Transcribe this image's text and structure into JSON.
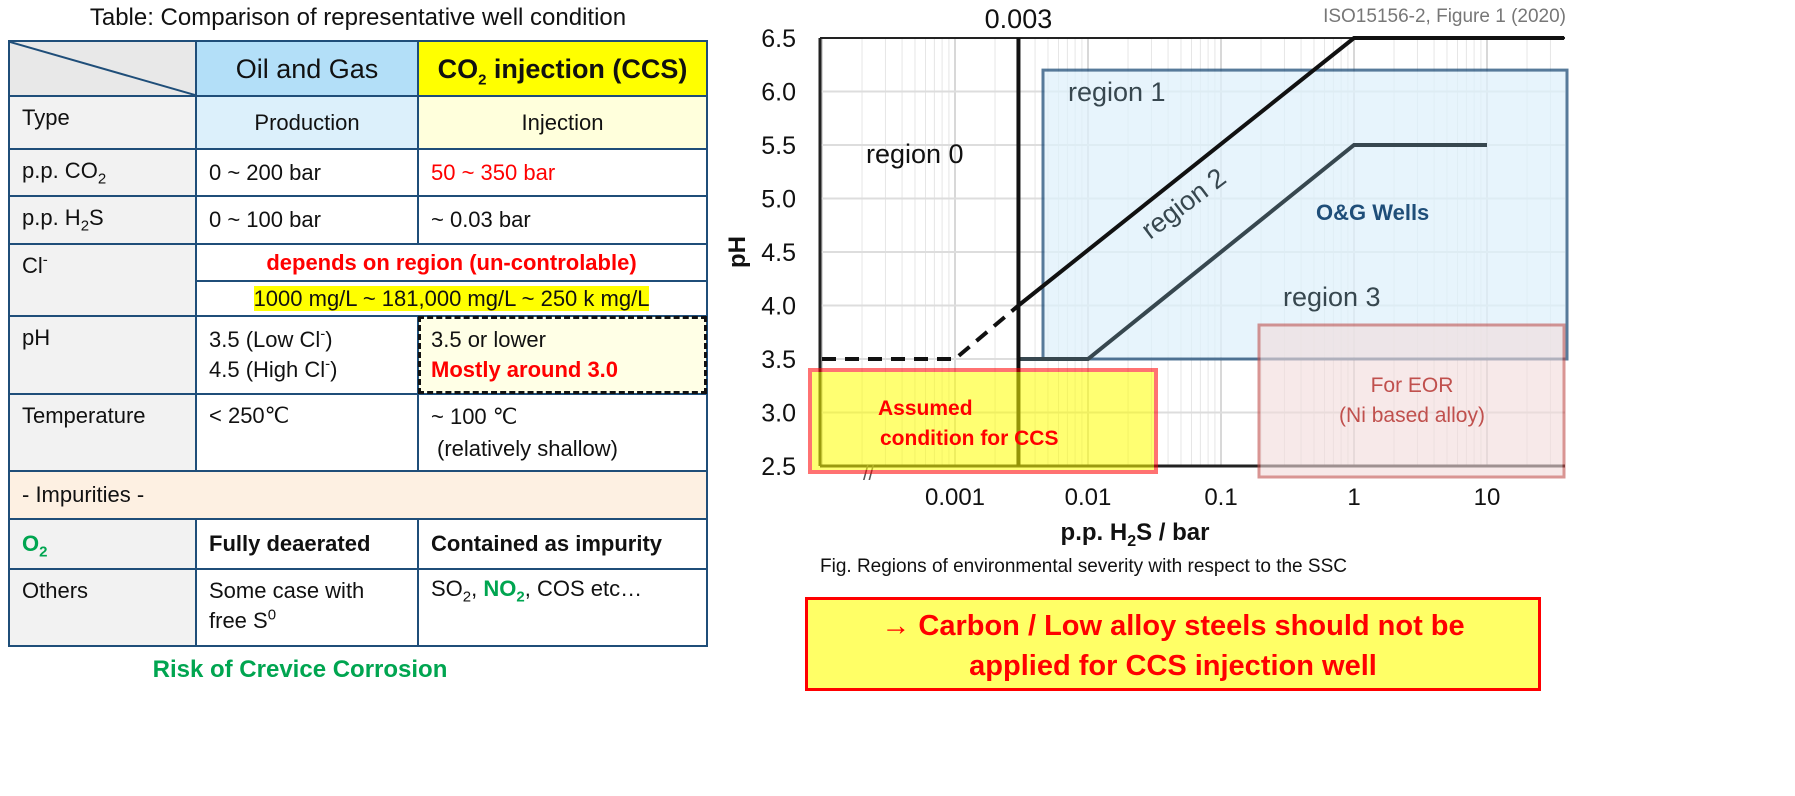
{
  "table": {
    "title": "Table: Comparison of representative well condition",
    "col_oil": "Oil and Gas",
    "col_ccs_pre": "CO",
    "col_ccs_sub": "2",
    "col_ccs_post": " injection (CCS)",
    "rows": {
      "type": {
        "label": "Type",
        "oil": "Production",
        "ccs": "Injection"
      },
      "co2": {
        "label_pre": "p.p. CO",
        "label_sub": "2",
        "oil": "0 ~ 200 bar",
        "ccs": "50 ~ 350 bar"
      },
      "h2s": {
        "label_pre": "p.p. H",
        "label_sub": "2",
        "label_post": "S",
        "oil": "0 ~ 100 bar",
        "ccs": "~ 0.03 bar"
      },
      "cl": {
        "label_pre": "Cl",
        "label_sup": "-",
        "note": "depends on region (un-controlable)",
        "range": "1000 mg/L ~ 181,000 mg/L ~ 250 k mg/L"
      },
      "ph": {
        "label": "pH",
        "oil_1_pre": "3.5 (Low Cl",
        "oil_1_post": ")",
        "oil_2_pre": "4.5 (High Cl",
        "oil_2_post": ")",
        "sup": "-",
        "ccs_1": "3.5 or lower",
        "ccs_2": "Mostly around 3.0"
      },
      "temp": {
        "label": "Temperature",
        "oil": "< 250℃",
        "ccs_1": "~ 100 ℃",
        "ccs_2": "(relatively shallow)"
      },
      "impurities": {
        "label": "- Impurities -"
      },
      "o2": {
        "label_pre": "O",
        "label_sub": "2",
        "oil": "Fully deaerated",
        "ccs": "Contained as impurity"
      },
      "others": {
        "label": "Others",
        "oil_1": "Some case with",
        "oil_2_pre": "free S",
        "oil_2_sup": "0",
        "ccs_so": "SO",
        "ccs_no": "NO",
        "ccs_tail": ", COS etc…",
        "sub": "2"
      }
    },
    "footer": "Risk of Crevice Corrosion"
  },
  "chart_data": {
    "type": "line",
    "source": "ISO15156-2, Figure 1 (2020)",
    "xlabel_pre": "p.p. H",
    "xlabel_sub": "2",
    "xlabel_post": "S / bar",
    "ylabel": "pH",
    "xscale": "log",
    "xlim": [
      0.0001,
      38
    ],
    "ylim": [
      2.5,
      6.5
    ],
    "xticks": [
      {
        "v": 0.001,
        "label": "0.001"
      },
      {
        "v": 0.01,
        "label": "0.01"
      },
      {
        "v": 0.1,
        "label": "0.1"
      },
      {
        "v": 1,
        "label": "1"
      },
      {
        "v": 10,
        "label": "10"
      }
    ],
    "yticks": [
      {
        "v": 6.5,
        "label": "6.5"
      },
      {
        "v": 6.0,
        "label": "6.0"
      },
      {
        "v": 5.5,
        "label": "5.5"
      },
      {
        "v": 5.0,
        "label": "5.0"
      },
      {
        "v": 4.5,
        "label": "4.5"
      },
      {
        "v": 4.0,
        "label": "4.0"
      },
      {
        "v": 3.5,
        "label": "3.5"
      },
      {
        "v": 3.0,
        "label": "3.0"
      },
      {
        "v": 2.5,
        "label": "2.5"
      }
    ],
    "marker_x": {
      "v": 0.003,
      "label": "0.003"
    },
    "series": [
      {
        "name": "region0-1 boundary",
        "style": "solid",
        "points": [
          [
            0.003,
            4.0
          ],
          [
            1,
            6.5
          ],
          [
            38,
            6.5
          ]
        ]
      },
      {
        "name": "region0-1 boundary extrapolated",
        "style": "dashed",
        "points": [
          [
            0.0001,
            3.5
          ],
          [
            0.001,
            3.5
          ],
          [
            0.003,
            4.0
          ]
        ]
      },
      {
        "name": "region2-3 boundary",
        "style": "solid",
        "points": [
          [
            0.003,
            3.5
          ],
          [
            0.01,
            3.5
          ],
          [
            1,
            5.5
          ],
          [
            10,
            5.5
          ]
        ]
      },
      {
        "name": "threshold 0.003",
        "style": "solid",
        "points": [
          [
            0.003,
            2.5
          ],
          [
            0.003,
            6.5
          ]
        ]
      }
    ],
    "regions": [
      {
        "label": "region 0"
      },
      {
        "label": "region 1"
      },
      {
        "label": "region 2"
      },
      {
        "label": "region 3"
      }
    ],
    "overlays": [
      {
        "label": "O&G Wells",
        "x": [
          0.005,
          38
        ],
        "y": [
          3.5,
          6.2
        ],
        "color": "#1f4e79"
      },
      {
        "label": "Assumed condition for CCS",
        "label_1": "Assumed",
        "label_2": "condition for CCS",
        "x": [
          8e-05,
          0.03
        ],
        "y": [
          2.45,
          3.4
        ],
        "color": "#ff0000"
      },
      {
        "label": "For EOR (Ni based alloy)",
        "label_1": "For EOR",
        "label_2": "(Ni based alloy)",
        "x": [
          0.2,
          38
        ],
        "y": [
          2.4,
          3.8
        ],
        "color": "#c0504d"
      }
    ],
    "caption": "Fig. Regions of environmental severity with respect to the SSC"
  },
  "callout": {
    "line1": "→ Carbon / Low alloy steels should not be",
    "line2": "applied for CCS injection well"
  }
}
